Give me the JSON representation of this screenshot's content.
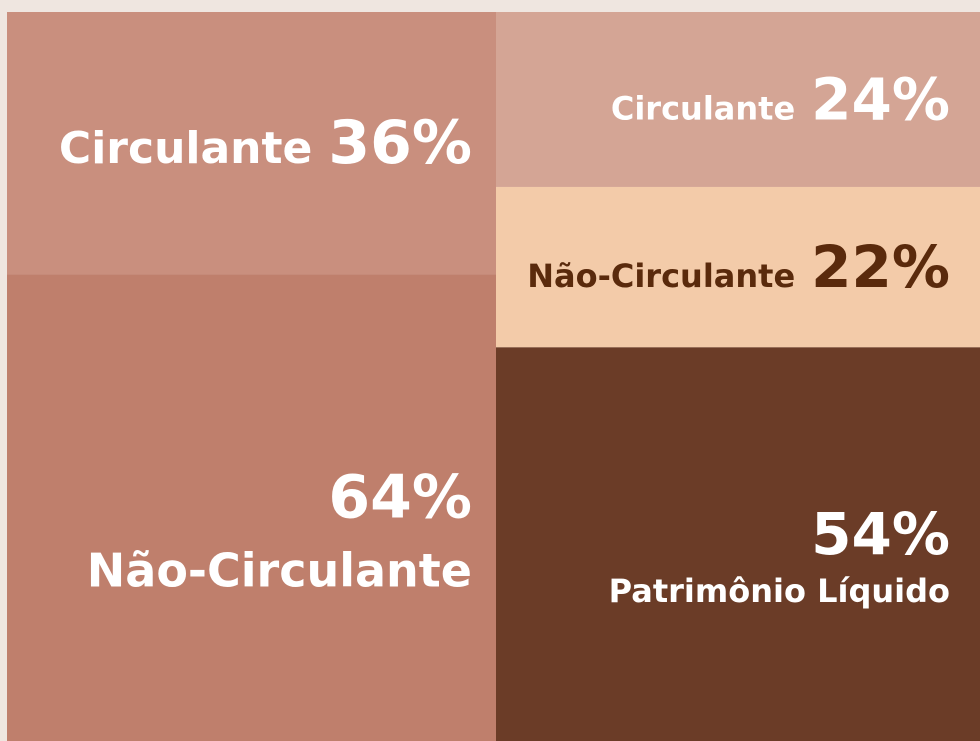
{
  "chart_data": {
    "type": "stacked",
    "columns": [
      {
        "segments": [
          {
            "name": "Circulante",
            "value": 36,
            "value_label": "36%",
            "color": "#c98f7e",
            "text_color": "#ffffff"
          },
          {
            "name": "Não-Circulante",
            "value": 64,
            "value_label": "64%",
            "color": "#bf7f6c",
            "text_color": "#ffffff"
          }
        ]
      },
      {
        "segments": [
          {
            "name": "Circulante",
            "value": 24,
            "value_label": "24%",
            "color": "#d4a595",
            "text_color": "#ffffff"
          },
          {
            "name": "Não-Circulante",
            "value": 22,
            "value_label": "22%",
            "color": "#f3cba9",
            "text_color": "#5a2a0c"
          },
          {
            "name": "Patrimônio Líquido",
            "value": 54,
            "value_label": "54%",
            "color": "#6b3c27",
            "text_color": "#ffffff"
          }
        ]
      }
    ]
  }
}
